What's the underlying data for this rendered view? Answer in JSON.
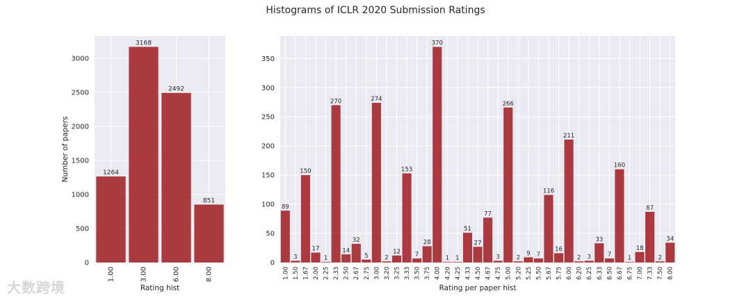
{
  "suptitle": "Histograms of ICLR 2020 Submission Ratings",
  "watermark": "大数跨境",
  "colors": {
    "bar": "#a4262c",
    "plot_bg": "#eaeaf2",
    "grid": "#ffffff",
    "text": "#262626"
  },
  "chart_data": [
    {
      "type": "bar",
      "xlabel": "Rating hist",
      "ylabel": "Number of papers",
      "categories": [
        "1.00",
        "3.00",
        "6.00",
        "8.00"
      ],
      "values": [
        1264,
        3168,
        2492,
        851
      ],
      "data_labels": [
        "1264",
        "3168",
        "2492",
        "851"
      ],
      "yticks": [
        0,
        500,
        1000,
        1500,
        2000,
        2500,
        3000
      ],
      "ylim": [
        0,
        3326
      ],
      "grid": true
    },
    {
      "type": "bar",
      "xlabel": "Rating per paper hist",
      "ylabel": "",
      "categories": [
        "1.00",
        "1.50",
        "1.67",
        "2.00",
        "2.25",
        "2.33",
        "2.50",
        "2.67",
        "2.75",
        "3.00",
        "3.20",
        "3.25",
        "3.33",
        "3.50",
        "3.75",
        "4.00",
        "4.20",
        "4.25",
        "4.33",
        "4.50",
        "4.67",
        "4.75",
        "5.00",
        "5.20",
        "5.25",
        "5.50",
        "5.67",
        "5.75",
        "6.00",
        "6.20",
        "6.25",
        "6.33",
        "6.50",
        "6.67",
        "6.75",
        "7.00",
        "7.33",
        "7.50",
        "8.00"
      ],
      "values": [
        89,
        3,
        150,
        17,
        1,
        270,
        14,
        32,
        5,
        274,
        2,
        12,
        153,
        7,
        28,
        370,
        1,
        1,
        51,
        27,
        77,
        3,
        266,
        2,
        9,
        7,
        116,
        16,
        211,
        2,
        3,
        33,
        7,
        160,
        1,
        18,
        87,
        2,
        34
      ],
      "data_labels": [
        "89",
        "3",
        "150",
        "17",
        "1",
        "270",
        "14",
        "32",
        "5",
        "274",
        "2",
        "12",
        "153",
        "7",
        "28",
        "370",
        "1",
        "1",
        "51",
        "27",
        "77",
        "3",
        "266",
        "2",
        "9",
        "7",
        "116",
        "16",
        "211",
        "2",
        "3",
        "33",
        "7",
        "160",
        "1",
        "18",
        "87",
        "2",
        "34"
      ],
      "yticks": [
        0,
        50,
        100,
        150,
        200,
        250,
        300,
        350
      ],
      "ylim": [
        0,
        388.5
      ],
      "grid": true
    }
  ]
}
